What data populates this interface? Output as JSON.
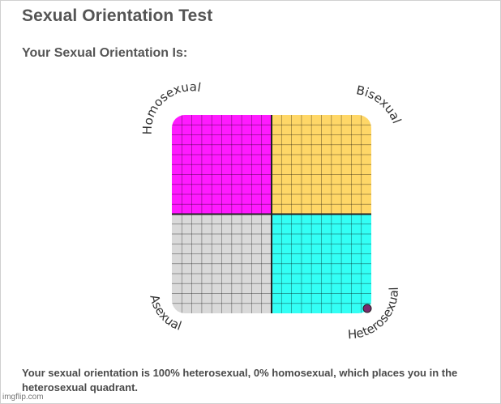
{
  "page": {
    "title": "Sexual Orientation Test",
    "subtitle": "Your Sexual Orientation Is:",
    "result_text": "Your sexual orientation is 100% heterosexual, 0% homosexual, which places you in the heterosexual quadrant.",
    "watermark": "imgflip.com"
  },
  "chart_data": {
    "type": "quadrant",
    "corner_labels": {
      "top_left": "Homosexual",
      "top_right": "Bisexual",
      "bottom_left": "Asexual",
      "bottom_right": "Heterosexual"
    },
    "quadrants": [
      {
        "name": "Homosexual",
        "color": "#ff1aff"
      },
      {
        "name": "Bisexual",
        "color": "#ffd767"
      },
      {
        "name": "Asexual",
        "color": "#d9d9d9"
      },
      {
        "name": "Heterosexual",
        "color": "#33fff5"
      }
    ],
    "grid_cells_per_side": 20,
    "grid": true,
    "result_point": {
      "heterosexual_percent": 100,
      "homosexual_percent": 0,
      "color": "#7a2a6e"
    }
  }
}
